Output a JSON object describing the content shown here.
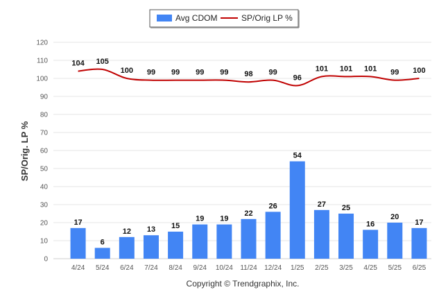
{
  "chart_data": {
    "type": "bar",
    "categories": [
      "4/24",
      "5/24",
      "6/24",
      "7/24",
      "8/24",
      "9/24",
      "10/24",
      "11/24",
      "12/24",
      "1/25",
      "2/25",
      "3/25",
      "4/25",
      "5/25",
      "6/25"
    ],
    "series": [
      {
        "name": "Avg CDOM",
        "type": "bar",
        "color": "#4285f4",
        "values": [
          17,
          6,
          12,
          13,
          15,
          19,
          19,
          22,
          26,
          54,
          27,
          25,
          16,
          20,
          17
        ]
      },
      {
        "name": "SP/Orig LP %",
        "type": "line",
        "color": "#c00000",
        "values": [
          104,
          105,
          100,
          99,
          99,
          99,
          99,
          98,
          99,
          96,
          101,
          101,
          101,
          99,
          100
        ]
      }
    ],
    "ylabel": "SP/Orig. LP %",
    "xlabel": "",
    "ylim": [
      0,
      120
    ],
    "yticks": [
      0,
      10,
      20,
      30,
      40,
      50,
      60,
      70,
      80,
      90,
      100,
      110,
      120
    ],
    "grid": true,
    "legend": "top-center"
  },
  "credit": "Copyright © Trendgraphix, Inc."
}
